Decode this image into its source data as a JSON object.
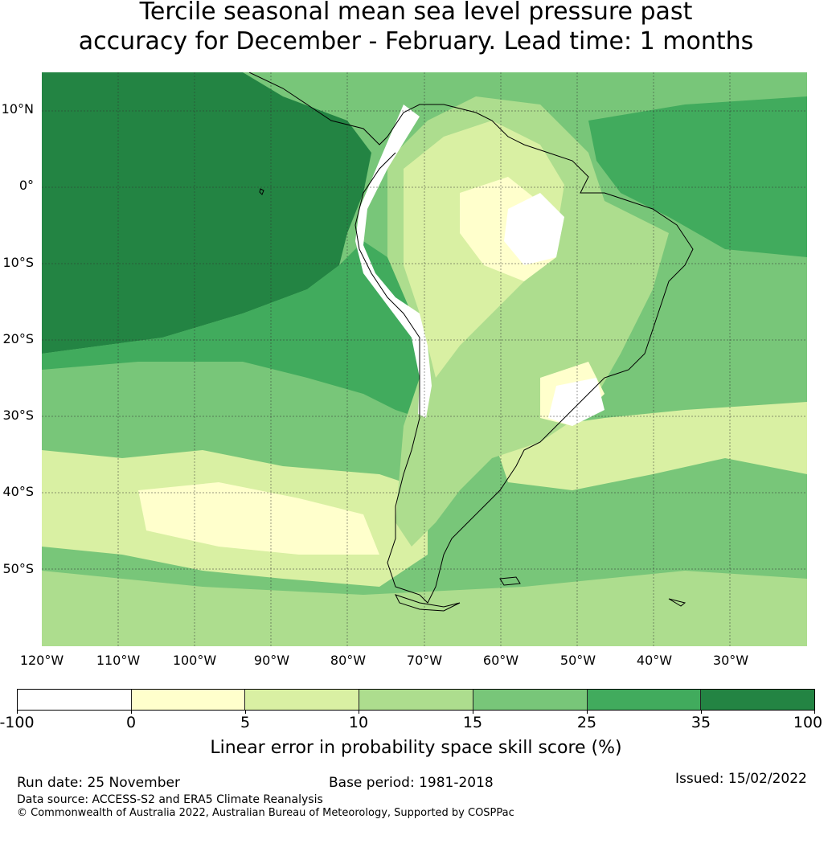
{
  "title": {
    "line1": "Tercile seasonal mean sea level pressure past",
    "line2": "accuracy for December - February. Lead time: 1 months"
  },
  "map": {
    "lon_range": [
      -120,
      -20
    ],
    "lat_range": [
      -60,
      15
    ],
    "lat_labels": [
      "10°N",
      "0°",
      "10°S",
      "20°S",
      "30°S",
      "40°S",
      "50°S"
    ],
    "lon_labels": [
      "120°W",
      "110°W",
      "100°W",
      "90°W",
      "80°W",
      "70°W",
      "60°W",
      "50°W",
      "40°W",
      "30°W"
    ],
    "background_color": "#78c679"
  },
  "colorbar": {
    "tick_labels": [
      "-100",
      "0",
      "5",
      "10",
      "15",
      "25",
      "35",
      "100"
    ],
    "colors": [
      "#ffffff",
      "#ffffcc",
      "#d9f0a3",
      "#addd8e",
      "#78c679",
      "#41ab5d",
      "#238443"
    ],
    "label": "Linear error in probability space skill score (%)"
  },
  "footer": {
    "run_date": "Run date: 25 November",
    "base_period": "Base period: 1981-2018",
    "issued": "Issued: 15/02/2022",
    "data_source": "Data source: ACCESS-S2 and ERA5 Climate Reanalysis",
    "copyright": "© Commonwealth of Australia 2022, Australian Bureau of Meteorology, Supported by COSPPac"
  }
}
